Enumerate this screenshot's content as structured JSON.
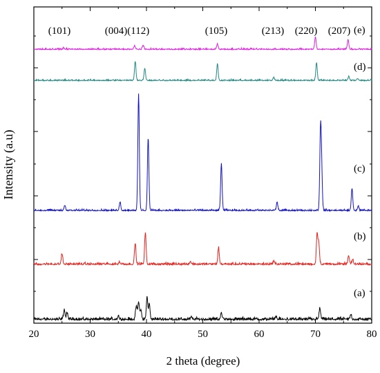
{
  "chart_data": {
    "type": "line",
    "xlabel": "2 theta (degree)",
    "ylabel": "Intensity (a.u)",
    "xlim": [
      20,
      80
    ],
    "x_ticks": [
      20,
      30,
      40,
      50,
      60,
      70,
      80
    ],
    "y_ticks_labeled": false,
    "grid": false,
    "peak_annotations": [
      {
        "label": "(101)",
        "x": 25.3
      },
      {
        "label": "(004)(112)",
        "x": 38.3
      },
      {
        "label": "(105)",
        "x": 53.0
      },
      {
        "label": "(213)",
        "x": 62.8
      },
      {
        "label": "(220)",
        "x": 70.6
      },
      {
        "label": "(207)",
        "x": 75.6
      }
    ],
    "series": [
      {
        "name": "(a)",
        "color": "#000000",
        "baseline": 0.2,
        "peaks": [
          {
            "x": 25.4,
            "y": 14
          },
          {
            "x": 25.9,
            "y": 9
          },
          {
            "x": 35.0,
            "y": 5
          },
          {
            "x": 38.2,
            "y": 20
          },
          {
            "x": 38.6,
            "y": 25
          },
          {
            "x": 39.0,
            "y": 14
          },
          {
            "x": 40.1,
            "y": 32
          },
          {
            "x": 40.5,
            "y": 22
          },
          {
            "x": 48.0,
            "y": 3
          },
          {
            "x": 53.3,
            "y": 10
          },
          {
            "x": 63.0,
            "y": 4
          },
          {
            "x": 70.8,
            "y": 16
          },
          {
            "x": 76.3,
            "y": 7
          }
        ]
      },
      {
        "name": "(b)",
        "color": "#e8211c",
        "baseline": 0.45,
        "peaks": [
          {
            "x": 25.0,
            "y": 15
          },
          {
            "x": 35.2,
            "y": 3
          },
          {
            "x": 38.0,
            "y": 30
          },
          {
            "x": 39.8,
            "y": 46
          },
          {
            "x": 47.8,
            "y": 4
          },
          {
            "x": 52.8,
            "y": 24
          },
          {
            "x": 62.6,
            "y": 5
          },
          {
            "x": 70.3,
            "y": 44
          },
          {
            "x": 70.6,
            "y": 30
          },
          {
            "x": 75.9,
            "y": 12
          },
          {
            "x": 76.6,
            "y": 6
          }
        ]
      },
      {
        "name": "(c)",
        "color": "#1010c8",
        "baseline": 0.97,
        "peaks": [
          {
            "x": 25.5,
            "y": 8
          },
          {
            "x": 35.3,
            "y": 12
          },
          {
            "x": 38.6,
            "y": 168
          },
          {
            "x": 40.3,
            "y": 105
          },
          {
            "x": 53.3,
            "y": 68
          },
          {
            "x": 63.2,
            "y": 12
          },
          {
            "x": 70.9,
            "y": 108
          },
          {
            "x": 71.1,
            "y": 55
          },
          {
            "x": 76.5,
            "y": 32
          },
          {
            "x": 77.6,
            "y": 6
          }
        ]
      },
      {
        "name": "(d)",
        "color": "#1f8a84",
        "baseline": 0.13,
        "peaks": [
          {
            "x": 38.0,
            "y": 28
          },
          {
            "x": 39.7,
            "y": 18
          },
          {
            "x": 52.6,
            "y": 24
          },
          {
            "x": 62.6,
            "y": 4
          },
          {
            "x": 70.2,
            "y": 26
          },
          {
            "x": 75.9,
            "y": 5
          },
          {
            "x": 77.5,
            "y": 3
          }
        ]
      },
      {
        "name": "(e)",
        "color": "#e020e0",
        "baseline": 0.13,
        "peaks": [
          {
            "x": 25.3,
            "y": 2
          },
          {
            "x": 37.9,
            "y": 5
          },
          {
            "x": 39.4,
            "y": 6
          },
          {
            "x": 52.6,
            "y": 8
          },
          {
            "x": 70.0,
            "y": 18
          },
          {
            "x": 75.8,
            "y": 14
          }
        ]
      }
    ]
  }
}
